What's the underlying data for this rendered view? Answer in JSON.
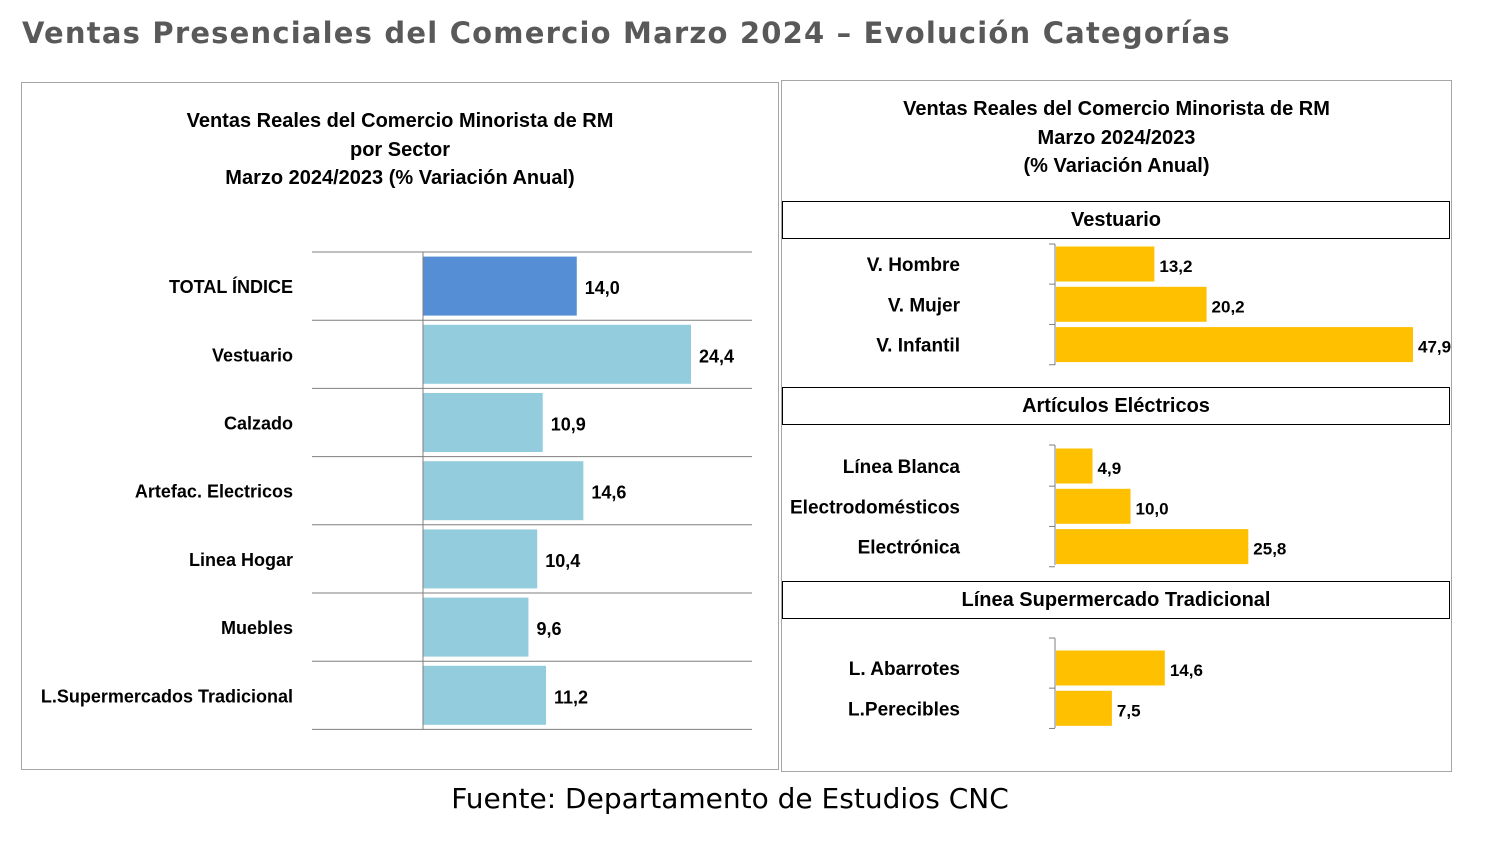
{
  "page_title": "Ventas Presenciales del Comercio Marzo 2024 – Evolución Categorías",
  "source": "Fuente: Departamento de Estudios CNC",
  "colors": {
    "total_bar": "#558ED5",
    "sector_bar": "#93CDDD",
    "category_bar": "#FFC000",
    "title_text": "#595959"
  },
  "chart_data": [
    {
      "type": "bar",
      "orientation": "horizontal",
      "title": [
        "Ventas Reales del Comercio Minorista de RM",
        "por Sector",
        "Marzo 2024/2023 (% Variación Anual)"
      ],
      "categories": [
        "TOTAL ÍNDICE",
        "Vestuario",
        "Calzado",
        "Artefac. Electricos",
        "Linea Hogar",
        "Muebles",
        "L.Supermercados Tradicional"
      ],
      "values": [
        14.0,
        24.4,
        10.9,
        14.6,
        10.4,
        9.6,
        11.2
      ],
      "data_labels": [
        "14,0",
        "24,4",
        "10,9",
        "14,6",
        "10,4",
        "9,6",
        "11,2"
      ],
      "highlight_index": 0,
      "xlim": [
        0,
        30
      ],
      "grid": "horizontal separators"
    },
    {
      "type": "bar",
      "orientation": "horizontal",
      "title": [
        "Ventas Reales del Comercio Minorista de RM",
        "Marzo 2024/2023",
        "(% Variación Anual)"
      ],
      "xlim": [
        0,
        50
      ],
      "groups": [
        {
          "name": "Vestuario",
          "categories": [
            "V. Hombre",
            "V. Mujer",
            "V. Infantil"
          ],
          "values": [
            13.2,
            20.2,
            47.9
          ],
          "data_labels": [
            "13,2",
            "20,2",
            "47,9"
          ]
        },
        {
          "name": "Artículos Eléctricos",
          "categories": [
            "Línea Blanca",
            "Electrodomésticos",
            "Electrónica"
          ],
          "values": [
            4.9,
            10.0,
            25.8
          ],
          "data_labels": [
            "4,9",
            "10,0",
            "25,8"
          ]
        },
        {
          "name": "Línea Supermercado Tradicional",
          "categories": [
            "L. Abarrotes",
            "L.Perecibles"
          ],
          "values": [
            14.6,
            7.5
          ],
          "data_labels": [
            "14,6",
            "7,5"
          ]
        }
      ]
    }
  ]
}
